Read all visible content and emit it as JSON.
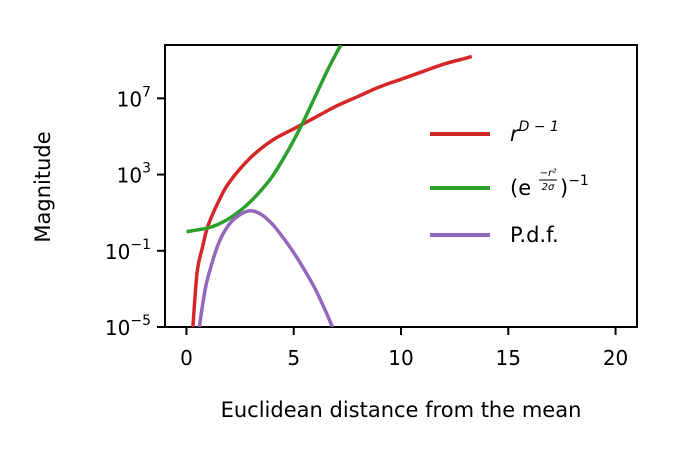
{
  "chart_data": {
    "type": "line",
    "xlabel": "Euclidean distance from the mean",
    "ylabel": "Magnitude",
    "xlim": [
      -1,
      21
    ],
    "ylim_log10": [
      -5,
      9.8
    ],
    "yscale": "log",
    "grid": false,
    "legend_position": "center-right",
    "x_ticks": [
      0,
      5,
      10,
      15,
      20
    ],
    "y_ticks_log10": [
      -5,
      -1,
      3,
      7
    ],
    "y_tick_labels": [
      "10^-5",
      "10^-1",
      "10^3",
      "10^7"
    ],
    "series": [
      {
        "name": "r^(D-1)",
        "color": "#d62728",
        "points": [
          [
            0.3,
            -5
          ],
          [
            0.5,
            -2.1
          ],
          [
            0.75,
            -0.8
          ],
          [
            1,
            0.3
          ],
          [
            1.5,
            1.6
          ],
          [
            2,
            2.6
          ],
          [
            3,
            3.9
          ],
          [
            4,
            4.8
          ],
          [
            5,
            5.4
          ],
          [
            6,
            6.0
          ],
          [
            7,
            6.6
          ],
          [
            8,
            7.1
          ],
          [
            9,
            7.6
          ],
          [
            10,
            8.0
          ],
          [
            11,
            8.4
          ],
          [
            12,
            8.8
          ],
          [
            13,
            9.1
          ],
          [
            13.3,
            9.2
          ]
        ]
      },
      {
        "name": "(e^(-r^2/2σ))^-1",
        "color": "#2ca02c",
        "points": [
          [
            0,
            0
          ],
          [
            1,
            0.2
          ],
          [
            1.5,
            0.4
          ],
          [
            2,
            0.7
          ],
          [
            2.5,
            1.1
          ],
          [
            3,
            1.6
          ],
          [
            3.5,
            2.2
          ],
          [
            4,
            2.9
          ],
          [
            4.5,
            3.8
          ],
          [
            5,
            4.8
          ],
          [
            5.5,
            5.9
          ],
          [
            6,
            7.1
          ],
          [
            6.5,
            8.3
          ],
          [
            7,
            9.4
          ],
          [
            7.2,
            9.8
          ]
        ]
      },
      {
        "name": "P.d.f.",
        "color": "#9467bd",
        "points": [
          [
            0.6,
            -5
          ],
          [
            0.8,
            -3.5
          ],
          [
            1,
            -2.4
          ],
          [
            1.5,
            -0.6
          ],
          [
            2,
            0.4
          ],
          [
            2.5,
            0.9
          ],
          [
            3,
            1.1
          ],
          [
            3.5,
            0.9
          ],
          [
            4,
            0.4
          ],
          [
            4.5,
            -0.3
          ],
          [
            5,
            -1.1
          ],
          [
            5.5,
            -2.0
          ],
          [
            6,
            -3.0
          ],
          [
            6.5,
            -4.2
          ],
          [
            6.8,
            -5
          ]
        ]
      }
    ],
    "legend_entries": [
      {
        "label_main": "r",
        "label_sup": "D − 1",
        "color": "#d62728"
      },
      {
        "label_main": "(e",
        "label_frac_num": "−r²",
        "label_frac_den": "2σ",
        "label_tail": ")",
        "label_tail_sup": "−1",
        "color": "#2ca02c"
      },
      {
        "label_main": "P.d.f.",
        "color": "#9467bd"
      }
    ]
  }
}
